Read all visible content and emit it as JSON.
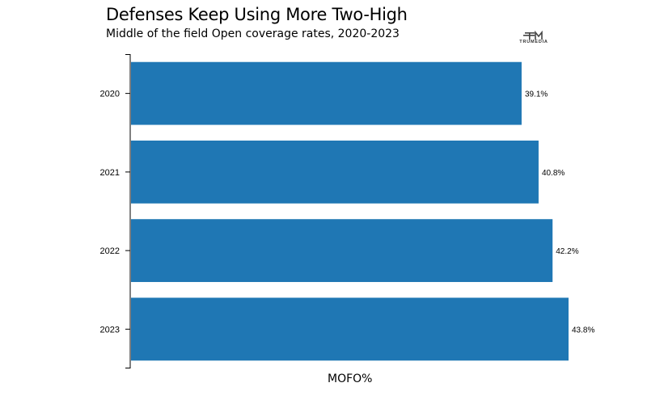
{
  "header": {
    "title": "Defenses Keep Using More Two-High",
    "subtitle": "Middle of the field Open coverage rates, 2020-2023",
    "logo_text": "TRUMEDIA"
  },
  "chart_data": {
    "type": "bar",
    "orientation": "horizontal",
    "categories": [
      "2020",
      "2021",
      "2022",
      "2023"
    ],
    "values": [
      39.1,
      40.8,
      42.2,
      43.8
    ],
    "value_labels": [
      "39.1%",
      "40.8%",
      "42.2%",
      "43.8%"
    ],
    "title": "Defenses Keep Using More Two-High",
    "subtitle": "Middle of the field Open coverage rates, 2020-2023",
    "xlabel": "MOFO%",
    "ylabel": "",
    "xlim": [
      0,
      43.8
    ],
    "bar_color": "#1f77b4",
    "grid": false,
    "legend": "none"
  }
}
